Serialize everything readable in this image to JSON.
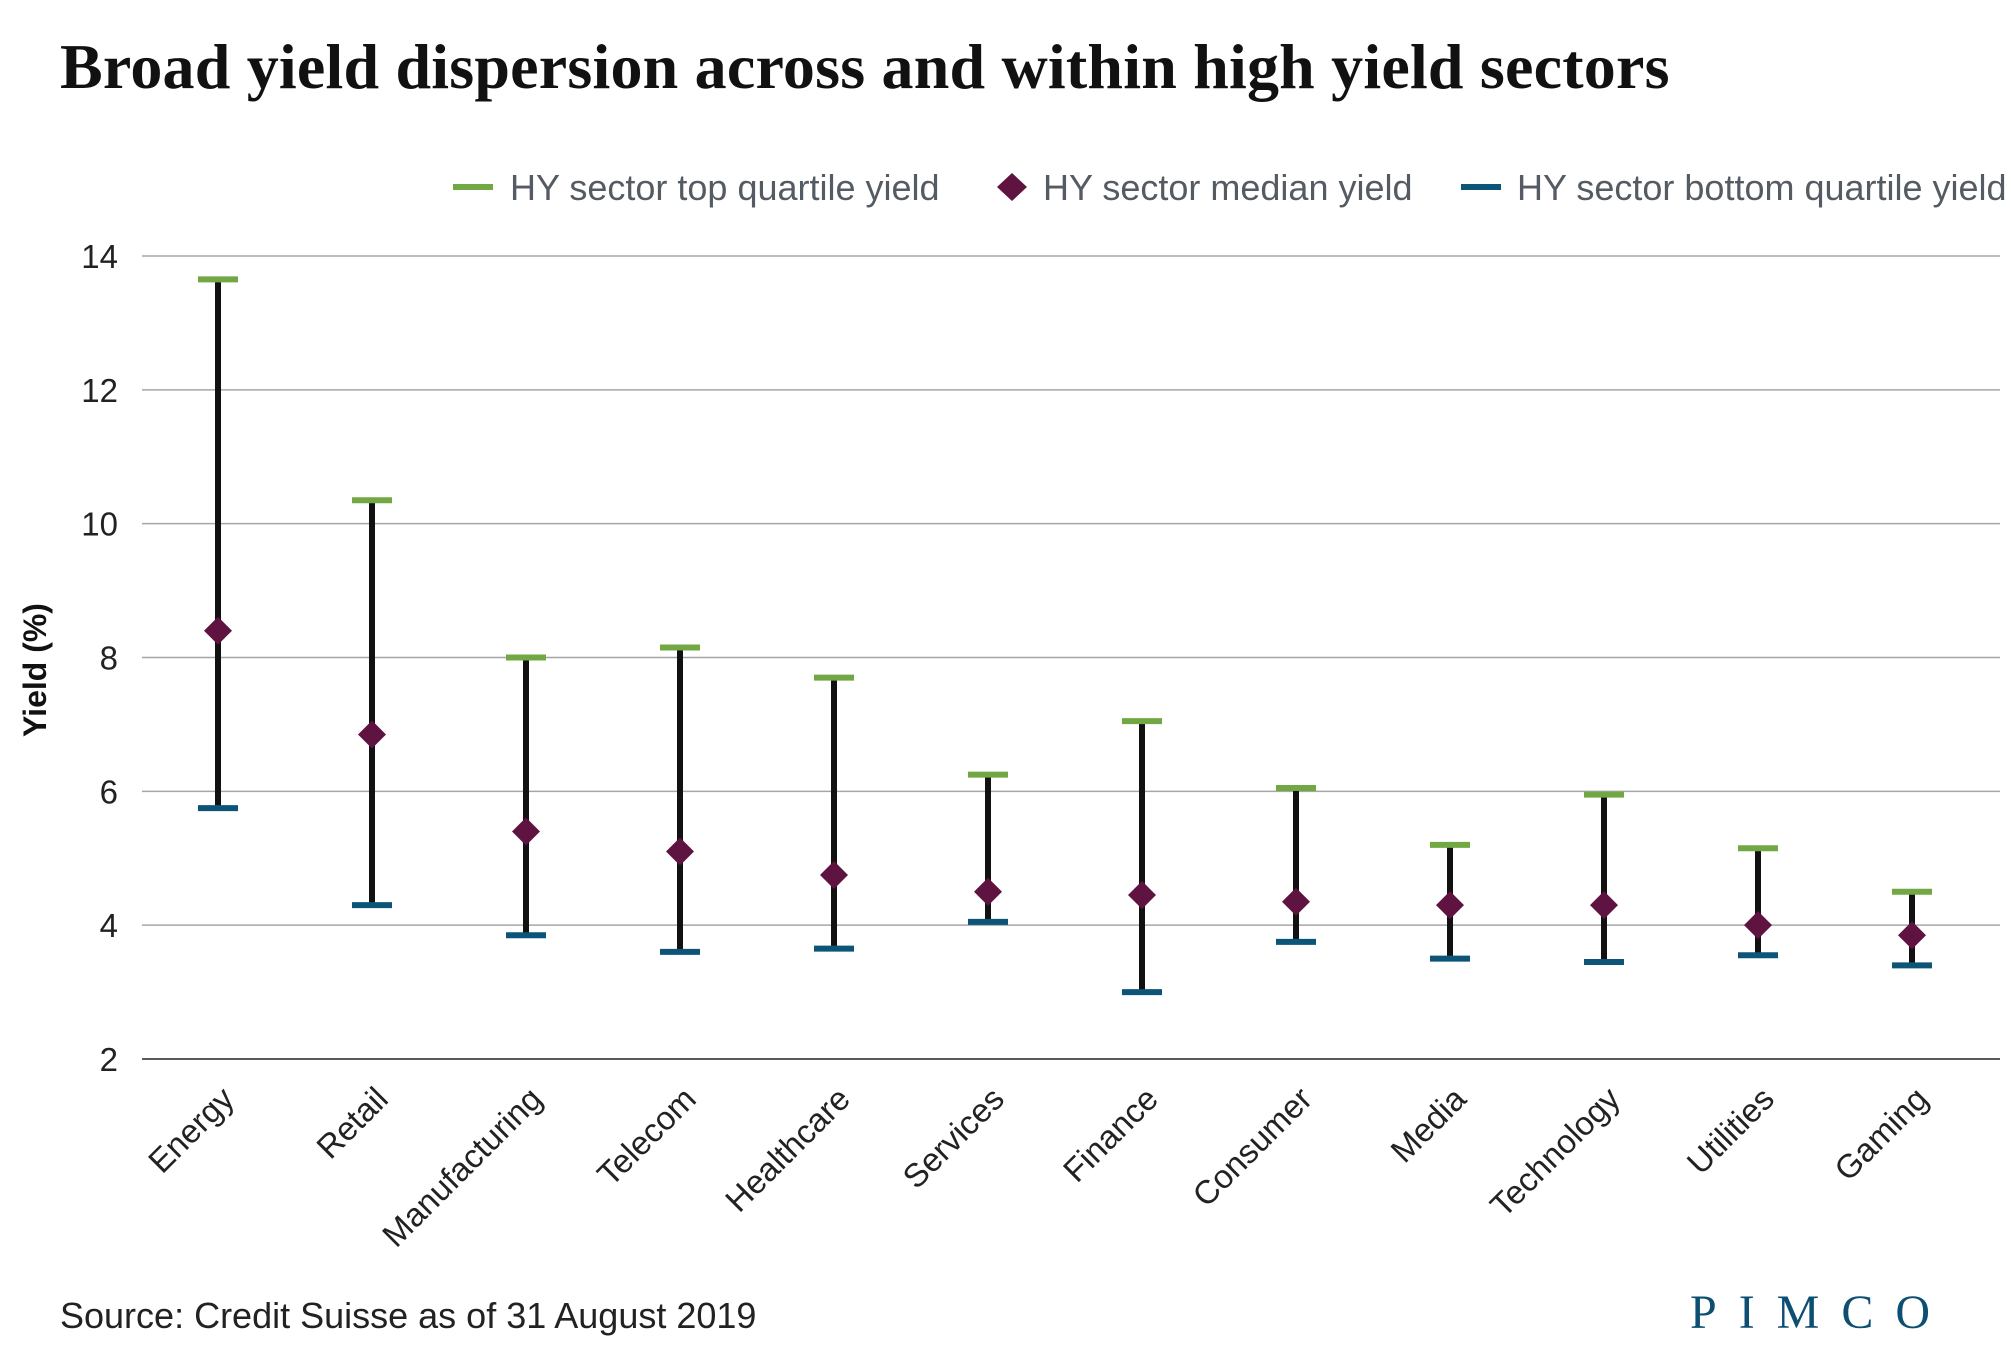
{
  "title": "Broad yield dispersion across and within high yield sectors",
  "source": "Source: Credit Suisse as of 31 August 2019",
  "logo_text": "PIMCO",
  "colors": {
    "top_quartile": "#72a843",
    "median": "#5e1340",
    "bottom_quartile": "#0d5479",
    "whisker": "#111111",
    "grid": "#a6a6a6"
  },
  "chart_data": {
    "type": "range",
    "title": "Broad yield dispersion across and within high yield sectors",
    "ylabel": "Yield (%)",
    "xlabel": "",
    "ylim": [
      2,
      14
    ],
    "yticks": [
      2,
      4,
      6,
      8,
      10,
      12,
      14
    ],
    "grid": true,
    "legend_position": "top-right",
    "categories": [
      "Energy",
      "Retail",
      "Manufacturing",
      "Telecom",
      "Healthcare",
      "Services",
      "Finance",
      "Consumer",
      "Media",
      "Technology",
      "Utilities",
      "Gaming"
    ],
    "series": [
      {
        "name": "HY sector top quartile yield",
        "marker": "dash",
        "values": [
          13.65,
          10.35,
          8.0,
          8.15,
          7.7,
          6.25,
          7.05,
          6.05,
          5.2,
          5.95,
          5.15,
          4.5
        ]
      },
      {
        "name": "HY sector median yield",
        "marker": "diamond",
        "values": [
          8.4,
          6.85,
          5.4,
          5.1,
          4.75,
          4.5,
          4.45,
          4.35,
          4.3,
          4.3,
          4.0,
          3.85
        ]
      },
      {
        "name": "HY sector bottom quartile yield",
        "marker": "dash",
        "values": [
          5.75,
          4.3,
          3.85,
          3.6,
          3.65,
          4.05,
          3.0,
          3.75,
          3.5,
          3.45,
          3.55,
          3.4
        ]
      }
    ]
  }
}
